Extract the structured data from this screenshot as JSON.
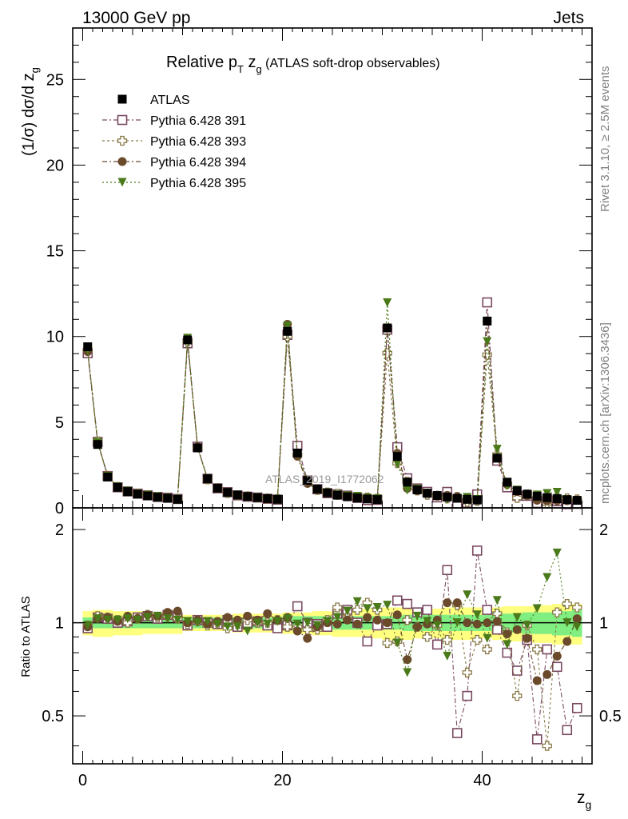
{
  "header": {
    "energy": "13000 GeV pp",
    "category": "Jets",
    "title_base": "Relative p",
    "title_sub": "T",
    "title_mid": " z",
    "title_sub2": "g",
    "title_rest": " (ATLAS soft-drop observables)"
  },
  "side_labels": {
    "rivet": "Rivet 3.1.10, ≥ 2.5M events",
    "mcplots": "mcplots.cern.ch [arXiv:1306.3436]"
  },
  "watermark": "ATLAS_2019_I1772062",
  "axes": {
    "ylabel_main": "(1/σ) dσ/d z",
    "ylabel_main_sub": "g",
    "ylabel_ratio": "Ratio to ATLAS",
    "xlabel": "z",
    "xlabel_sub": "g"
  },
  "colors": {
    "atlas": "#000000",
    "p391": "#7a4a62",
    "p393": "#8a7a4a",
    "p394": "#6a4a2a",
    "p395": "#4a7a1a",
    "band_yellow": "#ffff80",
    "band_green": "#80ee80"
  },
  "chart_data": {
    "type": "scatter",
    "x": [
      0.5,
      1.5,
      2.5,
      3.5,
      4.5,
      5.5,
      6.5,
      7.5,
      8.5,
      9.5,
      10.5,
      11.5,
      12.5,
      13.5,
      14.5,
      15.5,
      16.5,
      17.5,
      18.5,
      19.5,
      20.5,
      21.5,
      22.5,
      23.5,
      24.5,
      25.5,
      26.5,
      27.5,
      28.5,
      29.5,
      30.5,
      31.5,
      32.5,
      33.5,
      34.5,
      35.5,
      36.5,
      37.5,
      38.5,
      39.5,
      40.5,
      41.5,
      42.5,
      43.5,
      44.5,
      45.5,
      46.5,
      47.5,
      48.5,
      49.5
    ],
    "xlim": [
      -1,
      51
    ],
    "ylim_main": [
      0,
      28
    ],
    "ylim_ratio": [
      0.35,
      2.35
    ],
    "xticks": [
      0,
      20,
      40
    ],
    "yticks_main": [
      0,
      5,
      10,
      15,
      20,
      25
    ],
    "yticks_ratio": [
      0.5,
      1,
      2
    ],
    "legend_position": "top-left",
    "series": [
      {
        "name": "ATLAS",
        "marker": "square-filled",
        "values": [
          9.4,
          3.7,
          1.8,
          1.2,
          0.95,
          0.8,
          0.7,
          0.62,
          0.56,
          0.5,
          9.8,
          3.5,
          1.7,
          1.15,
          0.9,
          0.75,
          0.66,
          0.6,
          0.54,
          0.5,
          10.3,
          3.2,
          1.6,
          1.1,
          0.88,
          0.74,
          0.65,
          0.58,
          0.52,
          0.48,
          10.5,
          3.0,
          1.5,
          1.05,
          0.85,
          0.72,
          0.63,
          0.56,
          0.5,
          0.46,
          10.9,
          2.9,
          1.5,
          1.0,
          0.8,
          0.68,
          0.6,
          0.54,
          0.48,
          0.44
        ]
      },
      {
        "name": "Pythia 6.428 391",
        "marker": "square-open",
        "ratio": [
          0.96,
          1.04,
          1.03,
          1.0,
          1.01,
          1.04,
          1.05,
          1.03,
          1.06,
          1.04,
          0.98,
          1.02,
          1.0,
          0.99,
          1.02,
          0.97,
          0.99,
          1.01,
          0.98,
          0.96,
          0.98,
          1.13,
          1.0,
          0.99,
          0.97,
          1.07,
          1.1,
          1.0,
          0.87,
          0.98,
          0.99,
          1.18,
          1.15,
          1.08,
          1.1,
          0.85,
          1.48,
          0.44,
          0.58,
          1.71,
          1.1,
          0.95,
          0.8,
          0.7,
          0.88,
          0.42,
          0.82,
          0.72,
          0.45,
          0.53
        ]
      },
      {
        "name": "Pythia 6.428 393",
        "marker": "cross-open",
        "ratio": [
          0.98,
          1.05,
          1.04,
          1.02,
          1.0,
          1.03,
          1.06,
          1.04,
          1.05,
          1.03,
          0.99,
          1.01,
          0.98,
          1.0,
          0.96,
          0.99,
          1.02,
          1.0,
          1.0,
          1.02,
          0.97,
          0.97,
          0.95,
          0.95,
          1.02,
          1.12,
          1.04,
          1.1,
          1.16,
          1.1,
          0.86,
          0.87,
          1.02,
          0.97,
          0.9,
          0.98,
          0.88,
          1.14,
          0.69,
          0.88,
          0.82,
          1.07,
          0.93,
          0.58,
          0.98,
          0.82,
          0.4,
          1.08,
          1.15,
          1.12
        ]
      },
      {
        "name": "Pythia 6.428 394",
        "marker": "circle-filled",
        "ratio": [
          0.97,
          1.03,
          1.04,
          1.01,
          1.05,
          1.03,
          1.06,
          1.05,
          1.08,
          1.09,
          1.0,
          1.02,
          0.99,
          1.01,
          1.04,
          1.02,
          1.05,
          1.02,
          1.07,
          1.02,
          1.04,
          0.94,
          0.89,
          0.97,
          1.0,
          0.99,
          1.02,
          0.99,
          1.04,
          1.02,
          1.0,
          1.06,
          0.76,
          0.97,
          0.99,
          1.02,
          1.16,
          1.16,
          1.0,
          0.99,
          1.0,
          1.01,
          0.92,
          0.95,
          0.89,
          0.65,
          0.68,
          0.78,
          0.87,
          1.03
        ]
      },
      {
        "name": "Pythia 6.428 395",
        "marker": "triangle-down-filled",
        "ratio": [
          0.98,
          1.03,
          1.02,
          1.02,
          1.03,
          1.02,
          1.04,
          1.05,
          1.03,
          1.02,
          1.01,
          1.0,
          1.01,
          0.99,
          0.97,
          0.97,
          0.94,
          1.0,
          0.99,
          1.01,
          1.03,
          0.99,
          1.0,
          0.98,
          1.01,
          1.04,
          1.09,
          1.17,
          1.11,
          1.12,
          1.14,
          0.86,
          0.69,
          1.05,
          1.01,
          0.98,
          0.78,
          1.0,
          1.23,
          1.06,
          0.89,
          1.18,
          0.85,
          1.04,
          0.98,
          1.11,
          1.4,
          1.68,
          1.0,
          0.97
        ]
      }
    ],
    "uncertainty_band": {
      "stat_halfwidth": [
        0.04,
        0.04,
        0.04,
        0.04,
        0.04,
        0.04,
        0.04,
        0.04,
        0.04,
        0.04,
        0.04,
        0.04,
        0.04,
        0.04,
        0.04,
        0.04,
        0.04,
        0.04,
        0.04,
        0.04,
        0.05,
        0.05,
        0.05,
        0.05,
        0.05,
        0.05,
        0.05,
        0.05,
        0.05,
        0.05,
        0.05,
        0.05,
        0.06,
        0.06,
        0.06,
        0.06,
        0.06,
        0.06,
        0.06,
        0.06,
        0.06,
        0.07,
        0.07,
        0.07,
        0.08,
        0.08,
        0.08,
        0.09,
        0.09,
        0.1
      ],
      "total_halfwidth": [
        0.09,
        0.1,
        0.1,
        0.09,
        0.09,
        0.09,
        0.08,
        0.08,
        0.08,
        0.08,
        0.06,
        0.06,
        0.06,
        0.06,
        0.06,
        0.07,
        0.07,
        0.07,
        0.07,
        0.07,
        0.08,
        0.08,
        0.08,
        0.09,
        0.09,
        0.1,
        0.1,
        0.1,
        0.11,
        0.11,
        0.12,
        0.12,
        0.12,
        0.11,
        0.11,
        0.11,
        0.12,
        0.12,
        0.12,
        0.12,
        0.11,
        0.12,
        0.13,
        0.13,
        0.13,
        0.14,
        0.14,
        0.15,
        0.15,
        0.15
      ]
    }
  }
}
